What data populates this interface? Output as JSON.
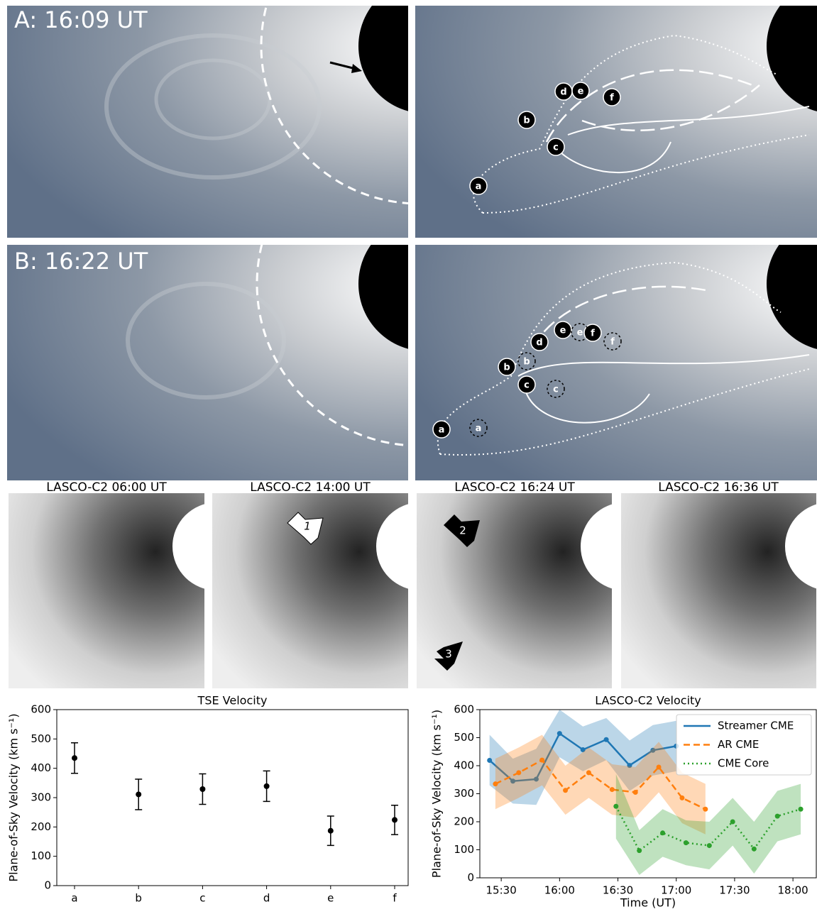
{
  "panels": [
    {
      "label": "A: 16:09 UT",
      "markers": [
        "d",
        "e",
        "f",
        "b",
        "c",
        "a"
      ]
    },
    {
      "label": "B: 16:22 UT",
      "markers": [
        "e",
        "f",
        "d",
        "b",
        "c",
        "a"
      ],
      "dashed_markers": [
        "e",
        "f",
        "b",
        "c",
        "a"
      ]
    }
  ],
  "lasco": [
    {
      "title": "LASCO-C2 06:00 UT"
    },
    {
      "title": "LASCO-C2 14:00 UT",
      "arrows": [
        "1"
      ]
    },
    {
      "title": "LASCO-C2 16:24 UT",
      "arrows": [
        "2",
        "3"
      ]
    },
    {
      "title": "LASCO-C2 16:36 UT"
    }
  ],
  "chart_data": [
    {
      "type": "errorbar",
      "title": "TSE Velocity",
      "y_label": "Plane-of-Sky Velocity (km s⁻¹)",
      "categories": [
        "a",
        "b",
        "c",
        "d",
        "e",
        "f"
      ],
      "values": [
        435,
        311,
        329,
        339,
        187,
        224
      ],
      "errors": [
        52,
        52,
        52,
        52,
        50,
        50
      ],
      "color": "#000000",
      "ylim": [
        0,
        600
      ],
      "yticks": [
        0,
        100,
        200,
        300,
        400,
        500,
        600
      ]
    },
    {
      "type": "line",
      "title": "LASCO-C2 Velocity",
      "x_label": "Time (UT)",
      "y_label": "Plane-of-Sky Velocity (km s⁻¹)",
      "xlim": [
        "15:19",
        "18:12"
      ],
      "xticks": [
        "15:30",
        "16:00",
        "16:30",
        "17:00",
        "17:30",
        "18:00"
      ],
      "ylim": [
        0,
        600
      ],
      "yticks": [
        0,
        100,
        200,
        300,
        400,
        500,
        600
      ],
      "legend": "upper right",
      "series": [
        {
          "name": "Streamer CME",
          "color": "#1f77b4",
          "dash": "solid",
          "x": [
            "15:24",
            "15:36",
            "15:48",
            "16:00",
            "16:12",
            "16:24",
            "16:36",
            "16:48",
            "17:00"
          ],
          "values": [
            419,
            345,
            352,
            515,
            457,
            493,
            401,
            455,
            470
          ],
          "upper": [
            510,
            425,
            460,
            600,
            540,
            570,
            490,
            545,
            560
          ],
          "lower": [
            330,
            265,
            260,
            430,
            380,
            420,
            310,
            365,
            380
          ]
        },
        {
          "name": "AR CME",
          "color": "#ff7f0e",
          "dash": "dashed",
          "x": [
            "15:27",
            "15:39",
            "15:51",
            "16:03",
            "16:15",
            "16:27",
            "16:39",
            "16:51",
            "17:03",
            "17:15"
          ],
          "values": [
            335,
            375,
            420,
            312,
            375,
            315,
            305,
            395,
            285,
            245
          ],
          "upper": [
            425,
            465,
            510,
            400,
            465,
            405,
            395,
            485,
            375,
            335
          ],
          "lower": [
            245,
            285,
            330,
            225,
            285,
            225,
            215,
            305,
            195,
            155
          ]
        },
        {
          "name": "CME Core",
          "color": "#2ca02c",
          "dash": "dotted",
          "x": [
            "16:29",
            "16:41",
            "16:53",
            "17:05",
            "17:17",
            "17:29",
            "17:40",
            "17:52",
            "18:04"
          ],
          "values": [
            255,
            97,
            160,
            125,
            115,
            200,
            103,
            220,
            245
          ],
          "upper": [
            370,
            170,
            245,
            205,
            200,
            285,
            200,
            310,
            335
          ],
          "lower": [
            140,
            10,
            75,
            45,
            30,
            115,
            15,
            130,
            155
          ]
        }
      ]
    }
  ]
}
